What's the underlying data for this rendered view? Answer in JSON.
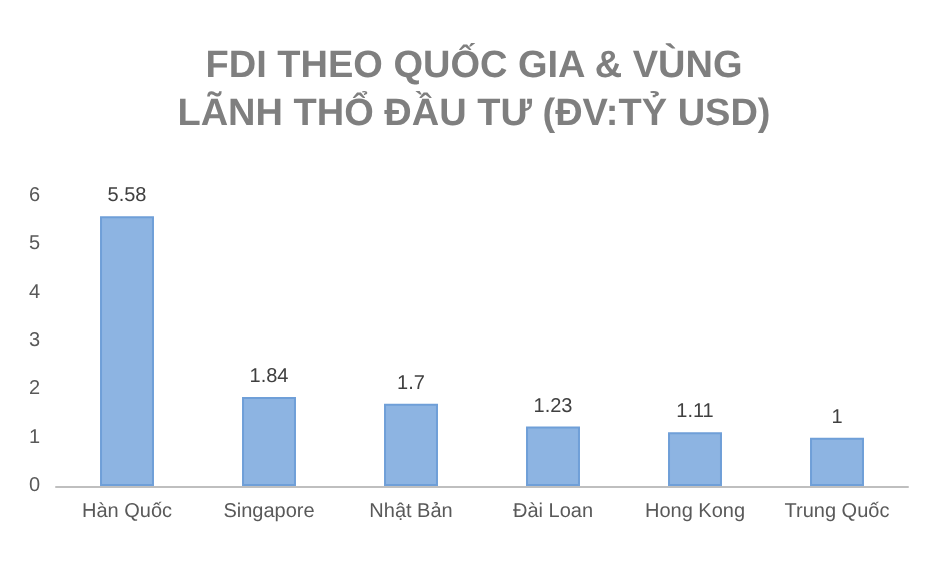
{
  "chart_data": {
    "type": "bar",
    "title": "FDI THEO QUỐC GIA & VÙNG\nLÃNH THỔ ĐẦU TƯ (ĐV:TỶ USD)",
    "categories": [
      "Hàn Quốc",
      "Singapore",
      "Nhật Bản",
      "Đài Loan",
      "Hong Kong",
      "Trung Quốc"
    ],
    "values": [
      5.58,
      1.84,
      1.7,
      1.23,
      1.11,
      1
    ],
    "color": "#8db4e2",
    "ylim": [
      0,
      6
    ],
    "yticks": [
      0,
      1,
      2,
      3,
      4,
      5,
      6
    ],
    "grid": false,
    "data_labels": true
  }
}
